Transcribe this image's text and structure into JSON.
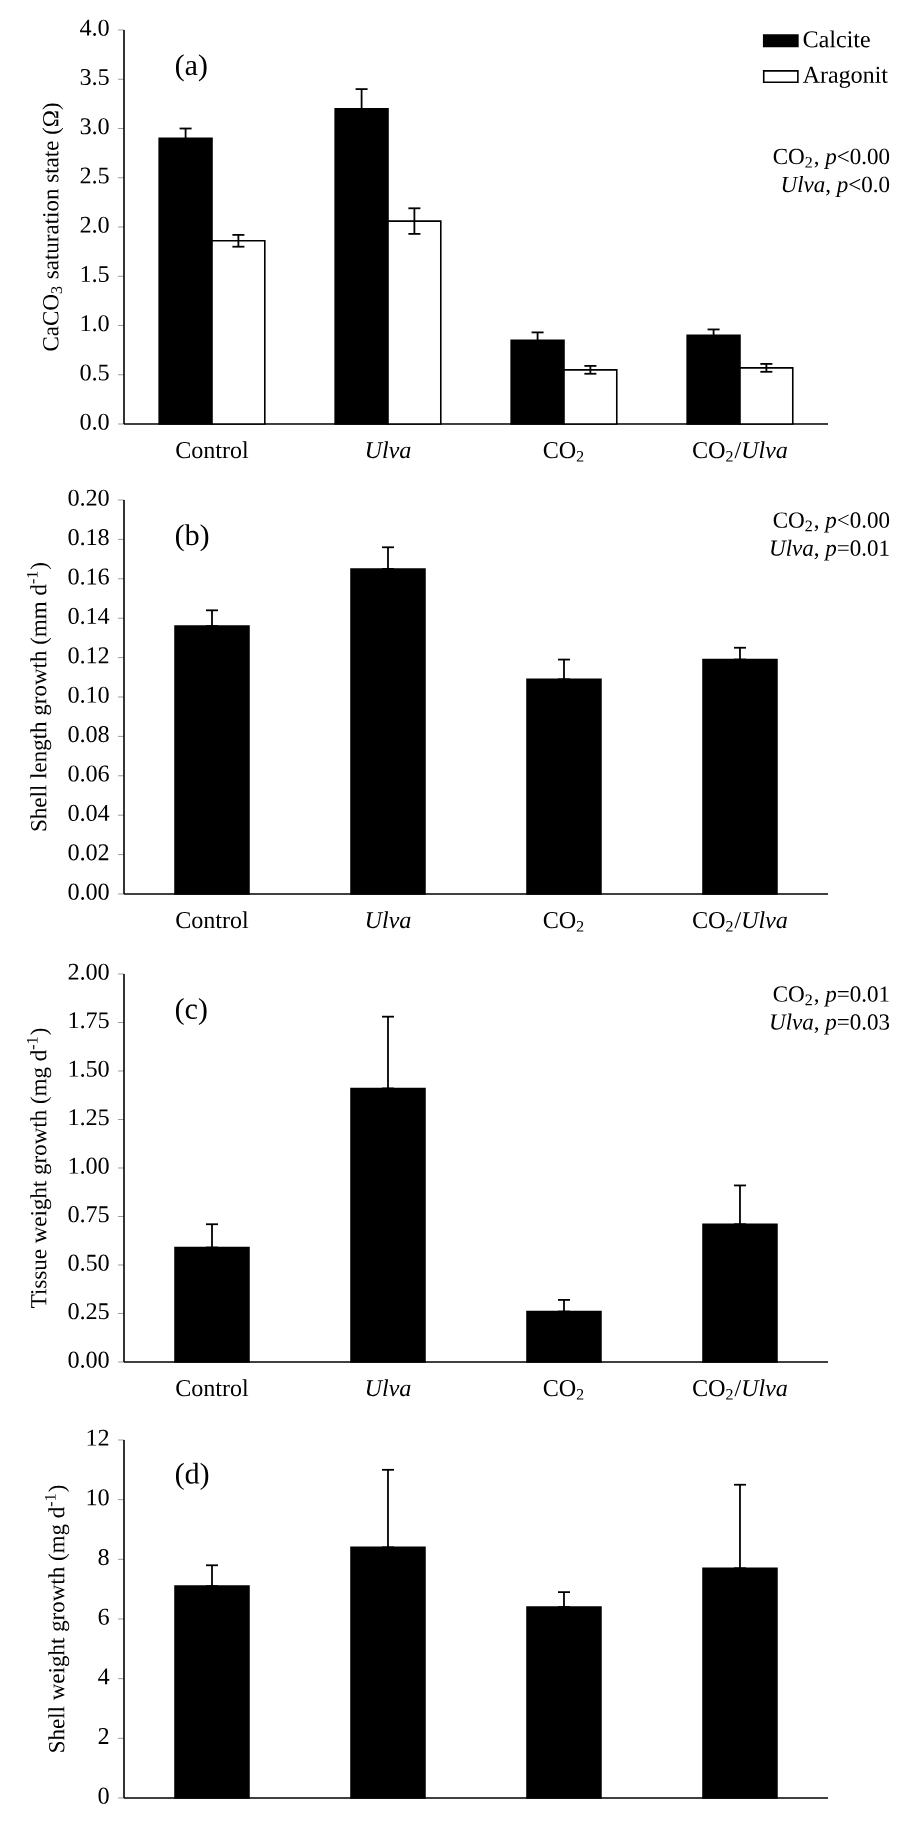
{
  "chart_data": [
    {
      "type": "bar",
      "categories": [
        "Control",
        "*Ulva*",
        "CO$_{2}$",
        "CO$_{2}$/*Ulva*"
      ],
      "ylabel": "CaCO$_{3}$ saturation state (Ω)",
      "ylim": [
        0,
        4
      ],
      "yticks": [
        {
          "value": 0,
          "label": "0.0"
        },
        0.5,
        {
          "value": 1,
          "label": "1.0"
        },
        1.5,
        {
          "value": 2,
          "label": "2.0"
        },
        2.5,
        {
          "value": 3,
          "label": "3.0"
        },
        3.5,
        {
          "value": 4,
          "label": "4.0"
        }
      ],
      "legend": "top right",
      "series": [
        {
          "name": "Calcite",
          "color": "#000000",
          "values": [
            2.9,
            3.2,
            0.85,
            0.9
          ],
          "errors": [
            0.1,
            0.2,
            0.08,
            0.06
          ]
        },
        {
          "name": "Aragonit",
          "color": "#ffffff",
          "values": [
            1.86,
            2.06,
            0.55,
            0.57
          ],
          "errors": [
            0.06,
            0.13,
            0.04,
            0.04
          ]
        }
      ],
      "annotations": [
        "(a)",
        "CO$_{2}$, *p*<0.00",
        "*Ulva*, *p*<0.0"
      ]
    },
    {
      "type": "bar",
      "categories": [
        "Control",
        "*Ulva*",
        "CO$_{2}$",
        "CO$_{2}$/*Ulva*"
      ],
      "ylabel": "Shell length growth (mm d$^{-1}$)",
      "ylim": [
        0,
        0.2
      ],
      "yticks": [
        {
          "value": 0,
          "label": "0.00"
        },
        0.02,
        0.04,
        0.06,
        0.08,
        {
          "value": 0.1,
          "label": "0.10"
        },
        0.12,
        0.14,
        0.16,
        0.18,
        {
          "value": 0.2,
          "label": "0.20"
        }
      ],
      "series": [
        {
          "color": "#000000",
          "values": [
            0.136,
            0.165,
            0.109,
            0.119
          ],
          "errors": [
            [
              0.136,
              0.144
            ],
            [
              0.165,
              0.176
            ],
            [
              0.109,
              0.119
            ],
            [
              0.119,
              0.125
            ]
          ]
        }
      ],
      "annotations": [
        "(b)",
        "CO$_{2}$, *p*<0.00",
        "*Ulva*, *p*=0.01"
      ]
    },
    {
      "type": "bar",
      "categories": [
        "Control",
        "*Ulva*",
        "CO$_{2}$",
        "CO$_{2}$/*Ulva*"
      ],
      "ylabel": "Tissue weight growth (mg d$^{-1}$)",
      "ylim": [
        0,
        2
      ],
      "yticks": [
        {
          "value": 0,
          "label": "0.00"
        },
        0.25,
        {
          "value": 0.5,
          "label": "0.50"
        },
        0.75,
        {
          "value": 1,
          "label": "1.00"
        },
        1.25,
        {
          "value": 1.5,
          "label": "1.50"
        },
        1.75,
        {
          "value": 2,
          "label": "2.00"
        }
      ],
      "series": [
        {
          "color": "#000000",
          "values": [
            0.59,
            1.41,
            0.26,
            0.71
          ],
          "errors": [
            [
              0.59,
              0.71
            ],
            [
              1.41,
              1.78
            ],
            [
              0.26,
              0.32
            ],
            [
              0.71,
              0.91
            ]
          ]
        }
      ],
      "annotations": [
        "(c)",
        "CO$_{2}$, *p*=0.01",
        "*Ulva*, *p*=0.03"
      ]
    },
    {
      "type": "bar",
      "categories": [
        null,
        null,
        null,
        null
      ],
      "ylabel": "Shell weight growth (mg d$^{-1}$)",
      "ylim": [
        0,
        12
      ],
      "yticks": [
        0,
        2,
        4,
        6,
        8,
        10,
        12
      ],
      "tick_labels": "y",
      "series": [
        {
          "color": "#000000",
          "values": [
            7.1,
            8.4,
            6.4,
            7.7
          ],
          "errors": [
            [
              7.1,
              7.8
            ],
            [
              8.4,
              11.0
            ],
            [
              6.4,
              6.9
            ],
            [
              7.7,
              10.5
            ]
          ]
        }
      ],
      "annotations": [
        "(d)"
      ]
    }
  ]
}
